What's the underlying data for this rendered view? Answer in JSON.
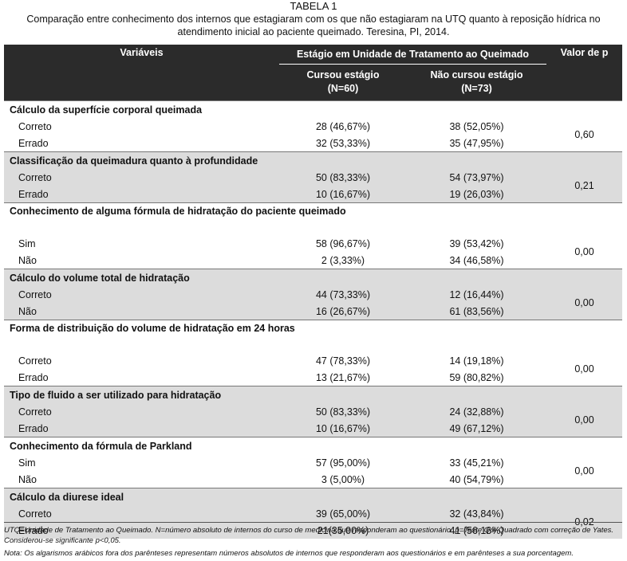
{
  "caption": {
    "label": "TABELA 1",
    "text": "Comparação entre conhecimento dos internos que estagiaram com os que não estagiaram na UTQ quanto à reposição hídrica no atendimento inicial ao paciente queimado. Teresina, PI, 2014."
  },
  "header": {
    "variables": "Variáveis",
    "group": "Estágio em Unidade de Tratamento ao Queimado",
    "pvalue": "Valor de p",
    "col1": "Cursou estágio",
    "col1_n": "(N=60)",
    "col2": "Não cursou estágio",
    "col2_n": "(N=73)"
  },
  "chart_data": {
    "type": "table",
    "columns": [
      "Variáveis",
      "Cursou estágio (N=60)",
      "Não cursou estágio (N=73)",
      "Valor de p"
    ],
    "sections": [
      {
        "title": "Cálculo da superfície corporal queimada",
        "shaded": false,
        "p": "0,60",
        "rows": [
          {
            "label": "Correto",
            "c1": "28 (46,67%)",
            "c2": "38 (52,05%)"
          },
          {
            "label": "Errado",
            "c1": "32 (53,33%)",
            "c2": "35 (47,95%)"
          }
        ]
      },
      {
        "title": "Classificação da queimadura quanto à profundidade",
        "shaded": true,
        "p": "0,21",
        "rows": [
          {
            "label": "Correto",
            "c1": "50 (83,33%)",
            "c2": "54 (73,97%)"
          },
          {
            "label": "Errado",
            "c1": "10 (16,67%)",
            "c2": "19 (26,03%)"
          }
        ]
      },
      {
        "title": "Conhecimento de alguma fórmula de hidratação do paciente queimado",
        "shaded": false,
        "p": "0,00",
        "rows": [
          {
            "label": "Sim",
            "c1": "58 (96,67%)",
            "c2": "39 (53,42%)"
          },
          {
            "label": "Não",
            "c1": "2 (3,33%)",
            "c2": "34 (46,58%)"
          }
        ]
      },
      {
        "title": "Cálculo do volume total de hidratação",
        "shaded": true,
        "p": "0,00",
        "rows": [
          {
            "label": "Correto",
            "c1": "44 (73,33%)",
            "c2": "12 (16,44%)"
          },
          {
            "label": "Não",
            "c1": "16 (26,67%)",
            "c2": "61 (83,56%)"
          }
        ]
      },
      {
        "title": "Forma de distribuição do volume de hidratação em 24 horas",
        "shaded": false,
        "p": "0,00",
        "rows": [
          {
            "label": "Correto",
            "c1": "47 (78,33%)",
            "c2": "14 (19,18%)"
          },
          {
            "label": "Errado",
            "c1": "13 (21,67%)",
            "c2": "59 (80,82%)"
          }
        ]
      },
      {
        "title": "Tipo de fluido a ser utilizado para hidratação",
        "shaded": true,
        "p": "0,00",
        "rows": [
          {
            "label": "Correto",
            "c1": "50 (83,33%)",
            "c2": "24 (32,88%)"
          },
          {
            "label": "Errado",
            "c1": "10 (16,67%)",
            "c2": "49 (67,12%)"
          }
        ]
      },
      {
        "title": "Conhecimento da fórmula de Parkland",
        "shaded": false,
        "p": "0,00",
        "rows": [
          {
            "label": "Sim",
            "c1": "57 (95,00%)",
            "c2": "33 (45,21%)"
          },
          {
            "label": "Não",
            "c1": "3 (5,00%)",
            "c2": "40 (54,79%)"
          }
        ]
      },
      {
        "title": "Cálculo da diurese ideal",
        "shaded": true,
        "p": "0,02",
        "rows": [
          {
            "label": "Correto",
            "c1": "39 (65,00%)",
            "c2": "32 (43,84%)"
          },
          {
            "label": "Errado",
            "c1": "21(35,00%)",
            "c2": "41 (56,16%)"
          }
        ]
      }
    ]
  },
  "notes": {
    "line1": "UTQ=Unidade de Tratamento ao Queimado. N=número absoluto de internos do curso de medicina que responderam ao questionário. p=Teste Qui-Quadrado com correção de Yates. Considerou-se significante p<0,05.",
    "line2": "Nota: Os algarismos arábicos fora dos parênteses representam números absolutos de internos que responderam aos questionários e em parênteses a sua porcentagem."
  }
}
